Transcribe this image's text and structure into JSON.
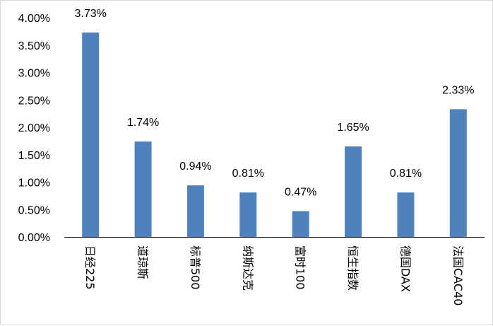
{
  "chart_data": {
    "type": "bar",
    "title": "",
    "xlabel": "",
    "ylabel": "",
    "categories": [
      "日经225",
      "道琼斯",
      "标普500",
      "纳斯达克",
      "富时100",
      "恒生指数",
      "德国DAX",
      "法国CAC40"
    ],
    "values": [
      3.73,
      1.74,
      0.94,
      0.81,
      0.47,
      1.65,
      0.81,
      2.33
    ],
    "data_labels": [
      "3.73%",
      "1.74%",
      "0.94%",
      "0.81%",
      "0.47%",
      "1.65%",
      "0.81%",
      "2.33%"
    ],
    "ylim": [
      0,
      4
    ],
    "yticks": [
      0,
      0.5,
      1,
      1.5,
      2,
      2.5,
      3,
      3.5,
      4
    ],
    "ytick_labels": [
      "0.00%",
      "0.50%",
      "1.00%",
      "1.50%",
      "2.00%",
      "2.50%",
      "3.00%",
      "3.50%",
      "4.00%"
    ],
    "grid": false,
    "legend": "none",
    "bar_color": "#4f81bd",
    "axis_color": "#000000"
  }
}
